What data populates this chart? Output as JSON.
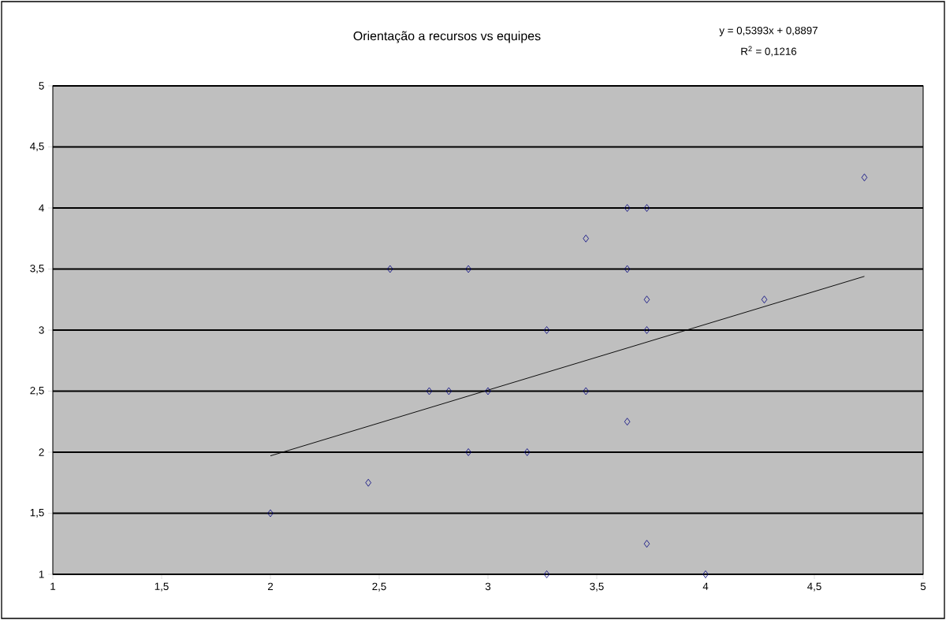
{
  "chart_data": {
    "type": "scatter",
    "title": "Orientação a recursos vs equipes",
    "annotations": [
      "y = 0,5393x + 0,8897",
      "R$^{2}$ = 0,1216"
    ],
    "xlim": [
      1,
      5
    ],
    "ylim": [
      1,
      5
    ],
    "xticks": [
      1,
      {
        "value": 1.5,
        "label": "1,5"
      },
      2,
      {
        "value": 2.5,
        "label": "2,5"
      },
      3,
      {
        "value": 3.5,
        "label": "3,5"
      },
      4,
      {
        "value": 4.5,
        "label": "4,5"
      },
      5
    ],
    "yticks": [
      1,
      {
        "value": 1.5,
        "label": "1,5"
      },
      2,
      {
        "value": 2.5,
        "label": "2,5"
      },
      3,
      {
        "value": 3.5,
        "label": "3,5"
      },
      4,
      {
        "value": 4.5,
        "label": "4,5"
      },
      5
    ],
    "grid": "y",
    "series": [
      {
        "marker": "diamond",
        "color": "#000080",
        "x": [
          2.0,
          2.45,
          2.55,
          2.73,
          2.82,
          2.91,
          2.91,
          3.0,
          3.18,
          3.27,
          3.27,
          3.45,
          3.45,
          3.64,
          3.64,
          3.64,
          3.73,
          3.73,
          3.73,
          3.73,
          4.0,
          4.27,
          4.73
        ],
        "values": [
          1.5,
          1.75,
          3.5,
          2.5,
          2.5,
          3.5,
          2.0,
          2.5,
          2.0,
          3.0,
          1.0,
          3.75,
          2.5,
          4.0,
          3.5,
          2.25,
          4.0,
          3.25,
          3.0,
          1.25,
          1.0,
          3.25,
          4.25
        ]
      },
      {
        "type": "line",
        "marker": "none",
        "color": "#000000",
        "x": [
          2.0,
          4.73
        ],
        "values": [
          1.97,
          3.44
        ]
      }
    ]
  }
}
